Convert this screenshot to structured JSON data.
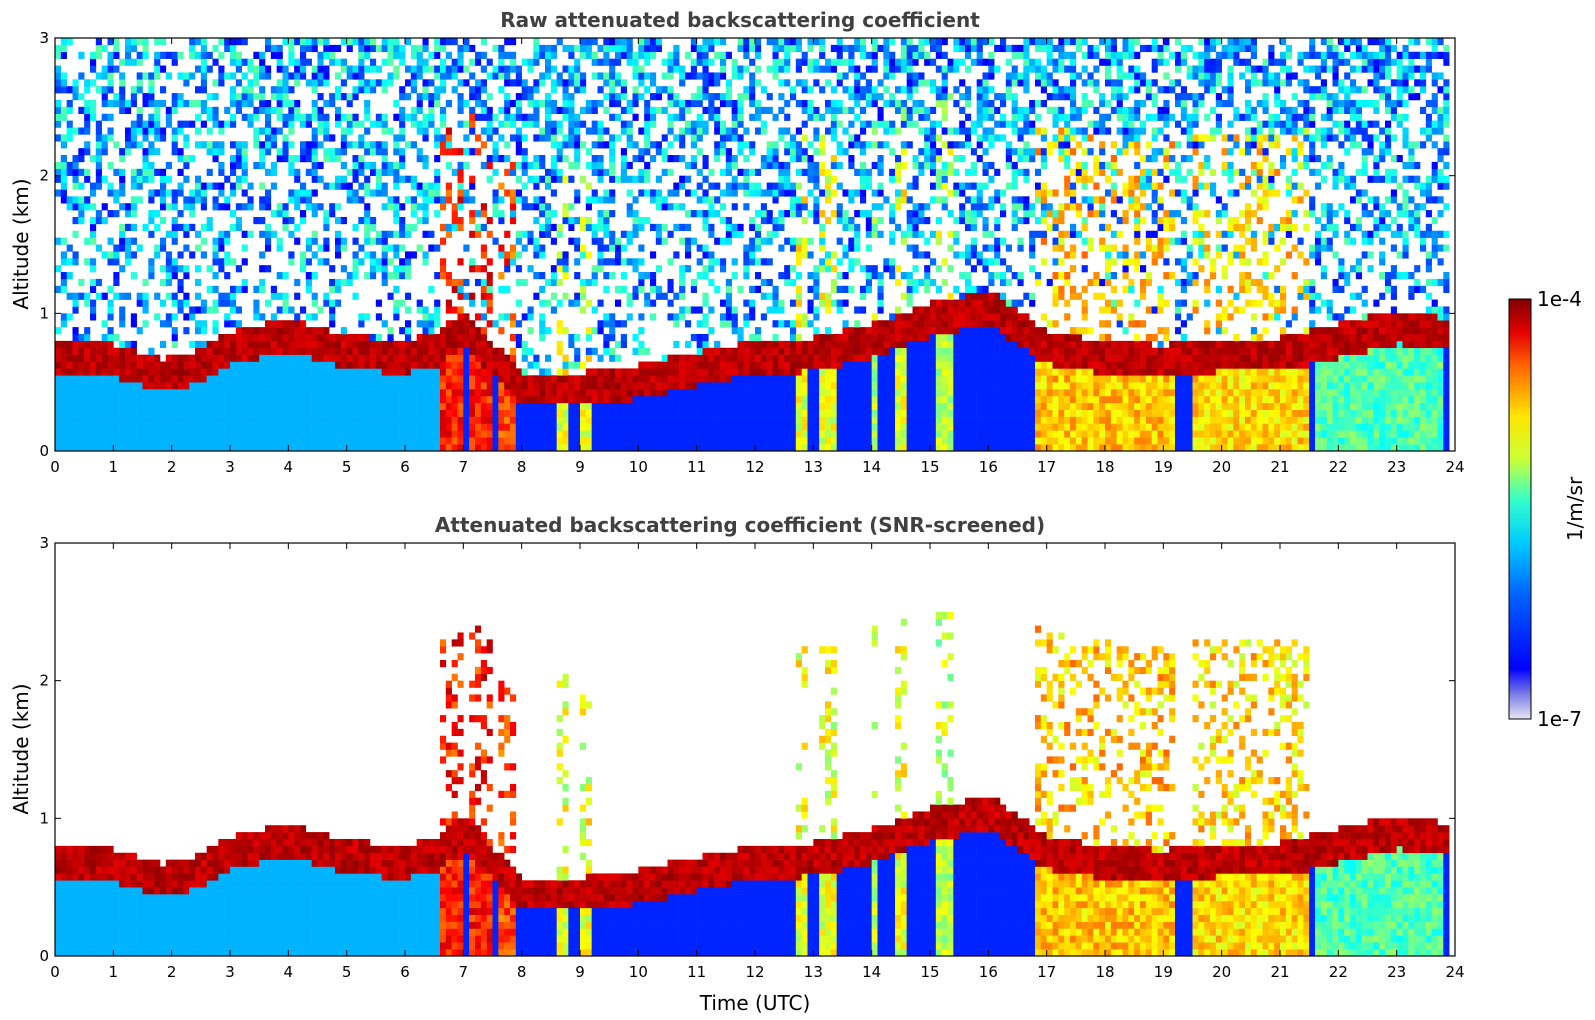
{
  "chart_data": [
    {
      "type": "heatmap",
      "title": "Raw attenuated backscattering coefficient",
      "xlabel": "",
      "ylabel": "Altitude (km)",
      "xlim": [
        0,
        24
      ],
      "ylim": [
        0,
        3
      ],
      "xticks": [
        "0",
        "1",
        "2",
        "3",
        "4",
        "5",
        "6",
        "7",
        "8",
        "9",
        "10",
        "11",
        "12",
        "13",
        "14",
        "15",
        "16",
        "17",
        "18",
        "19",
        "20",
        "21",
        "22",
        "23",
        "24"
      ],
      "yticks": [
        "0",
        "1",
        "2",
        "3"
      ],
      "screened": false
    },
    {
      "type": "heatmap",
      "title": "Attenuated backscattering coefficient (SNR-screened)",
      "xlabel": "Time (UTC)",
      "ylabel": "Altitude (km)",
      "xlim": [
        0,
        24
      ],
      "ylim": [
        0,
        3
      ],
      "xticks": [
        "0",
        "1",
        "2",
        "3",
        "4",
        "5",
        "6",
        "7",
        "8",
        "9",
        "10",
        "11",
        "12",
        "13",
        "14",
        "15",
        "16",
        "17",
        "18",
        "19",
        "20",
        "21",
        "22",
        "23",
        "24"
      ],
      "yticks": [
        "0",
        "1",
        "2",
        "3"
      ],
      "screened": true
    }
  ],
  "colorbar": {
    "label": "1/m/sr",
    "max_label": "1e-4",
    "min_label": "1e-7",
    "scale": "log",
    "colormap": "jet"
  },
  "layers": {
    "boundary_layer_top_km": [
      [
        0,
        0.68
      ],
      [
        1,
        0.66
      ],
      [
        1.8,
        0.55
      ],
      [
        2.5,
        0.62
      ],
      [
        3,
        0.75
      ],
      [
        4,
        0.85
      ],
      [
        5,
        0.72
      ],
      [
        6,
        0.68
      ],
      [
        6.6,
        0.75
      ],
      [
        7,
        0.9
      ],
      [
        8,
        0.45
      ],
      [
        9,
        0.45
      ],
      [
        10,
        0.5
      ],
      [
        10.5,
        0.55
      ],
      [
        11,
        0.6
      ],
      [
        12,
        0.68
      ],
      [
        13,
        0.7
      ],
      [
        14,
        0.8
      ],
      [
        15,
        0.95
      ],
      [
        16,
        1.05
      ],
      [
        17,
        0.75
      ],
      [
        18,
        0.68
      ],
      [
        19,
        0.65
      ],
      [
        20,
        0.7
      ],
      [
        21,
        0.7
      ],
      [
        22,
        0.8
      ],
      [
        23,
        0.9
      ],
      [
        23.8,
        0.85
      ]
    ]
  }
}
